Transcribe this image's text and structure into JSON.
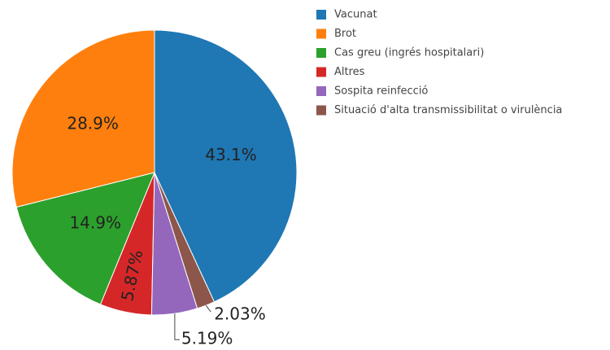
{
  "chart_data": {
    "type": "pie",
    "categories": [
      "Vacunat",
      "Brot",
      "Cas greu (ingrés hospitalari)",
      "Altres",
      "Sospita reinfecció",
      "Situació d'alta transmissibilitat o virulència"
    ],
    "values": [
      43.1,
      28.9,
      14.9,
      5.87,
      5.19,
      2.03
    ],
    "value_labels": [
      "43.1%",
      "28.9%",
      "14.9%",
      "5.87%",
      "5.19%",
      "2.03%"
    ],
    "colors": [
      "#1f77b4",
      "#ff7f0e",
      "#2ca02c",
      "#d62728",
      "#9467bd",
      "#8c564b"
    ],
    "legend": "top-right"
  }
}
